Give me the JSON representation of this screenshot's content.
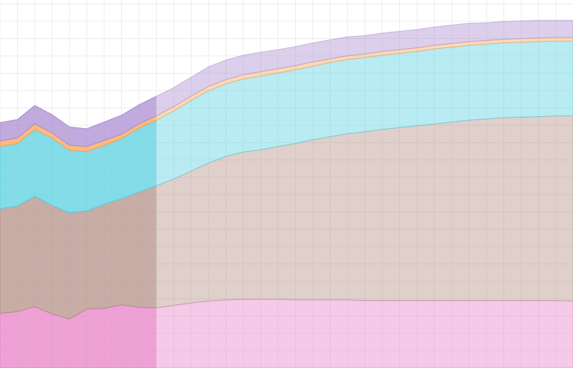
{
  "chart_data": {
    "type": "area",
    "stacked": true,
    "grid": true,
    "x": [
      0,
      1,
      2,
      3,
      4,
      5,
      6,
      7,
      8,
      9,
      10,
      11,
      12,
      13,
      14,
      15,
      16,
      17,
      18,
      19,
      20,
      21,
      22,
      23,
      24,
      25,
      26,
      27,
      28,
      29,
      30,
      31,
      32,
      33
    ],
    "xlim": [
      0,
      33
    ],
    "ylim": [
      0,
      600
    ],
    "highlight_range": [
      0,
      9
    ],
    "series": [
      {
        "color": "#e77fc6",
        "values": [
          89,
          92,
          100,
          88,
          80,
          96,
          97,
          103,
          99,
          98,
          102,
          106,
          109,
          111,
          112,
          112,
          112,
          111,
          111,
          111,
          111,
          110,
          110,
          110,
          110,
          110,
          110,
          110,
          110,
          110,
          110,
          110,
          110,
          109
        ]
      },
      {
        "color": "#b38f86",
        "values": [
          171,
          172,
          180,
          177,
          173,
          160,
          170,
          173,
          188,
          199,
          206,
          215,
          225,
          234,
          240,
          244,
          249,
          255,
          261,
          266,
          271,
          275,
          279,
          282,
          285,
          288,
          291,
          294,
          296,
          298,
          299,
          300,
          301,
          302
        ]
      },
      {
        "color": "#57d0df",
        "values": [
          101,
          102,
          109,
          110,
          102,
          97,
          96,
          98,
          104,
          107,
          111,
          115,
          118,
          118,
          119,
          120,
          120,
          120,
          120,
          121,
          121,
          121,
          121,
          121,
          121,
          122,
          122,
          122,
          122,
          122,
          122,
          122,
          122,
          122
        ]
      },
      {
        "color": "#f9a355",
        "values": [
          9,
          9,
          9,
          8,
          8,
          8,
          8,
          7,
          7,
          7,
          7,
          7,
          7,
          7,
          7,
          7,
          7,
          7,
          7,
          6,
          6,
          6,
          6,
          6,
          6,
          6,
          6,
          6,
          6,
          6,
          6,
          6,
          6,
          6
        ]
      },
      {
        "color": "#ac8dd1",
        "values": [
          30,
          30,
          30,
          30,
          30,
          29,
          30,
          31,
          31,
          32,
          31,
          31,
          32,
          32,
          32,
          32,
          31,
          31,
          31,
          31,
          31,
          30,
          30,
          30,
          30,
          30,
          30,
          30,
          29,
          29,
          29,
          29,
          28,
          28
        ]
      }
    ]
  }
}
